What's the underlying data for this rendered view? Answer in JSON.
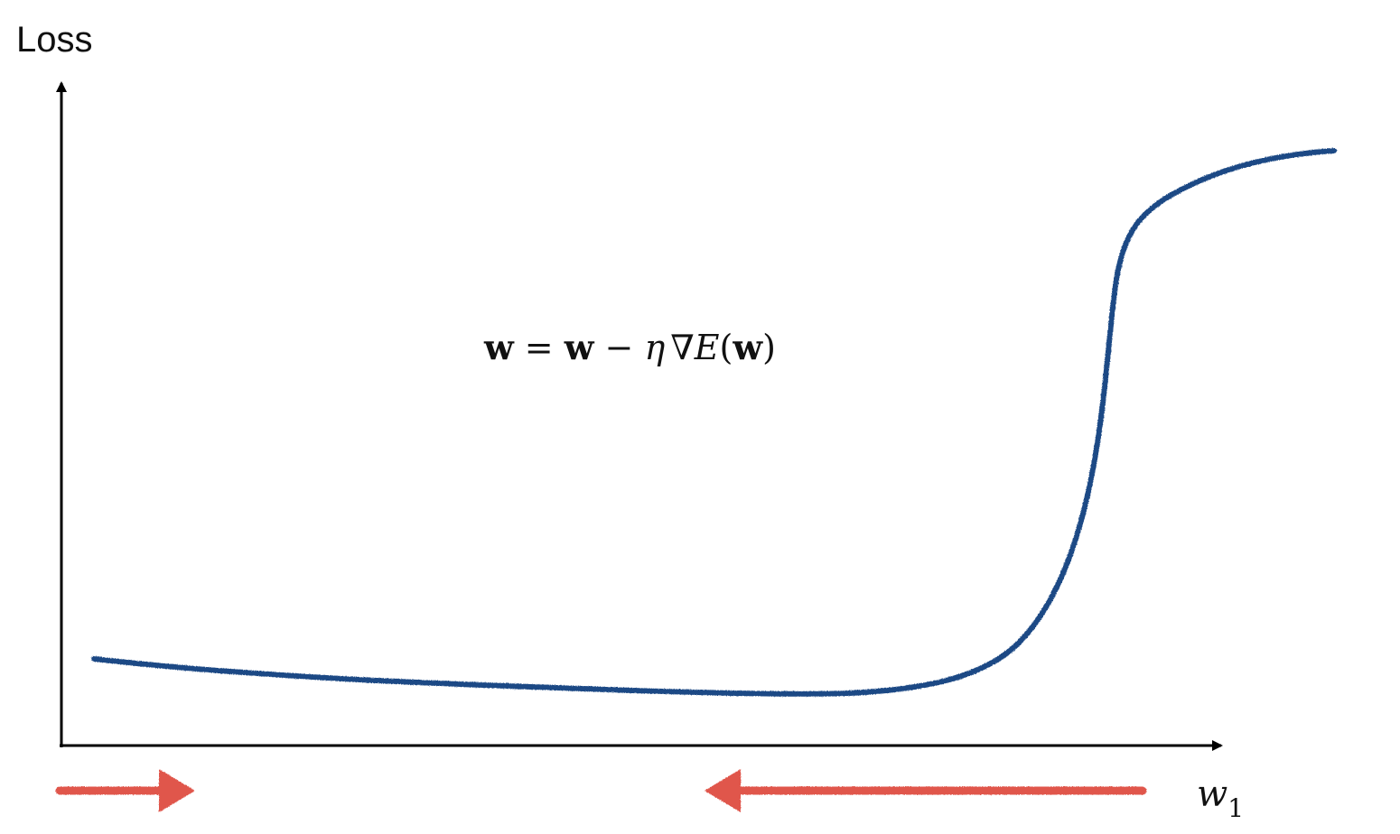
{
  "diagram": {
    "y_axis_label": "Loss",
    "x_axis_label": {
      "base": "w",
      "subscript": "1"
    },
    "formula": {
      "lhs": "w",
      "equals": " = ",
      "rhs_w": "w",
      "minus": " − ",
      "eta": "η",
      "nabla": "∇",
      "E": "E",
      "open_paren": "(",
      "arg": "w",
      "close_paren": ")"
    },
    "colors": {
      "curve": "#1f4a85",
      "arrows": "#e0564b",
      "axes": "#000000"
    },
    "arrows": [
      {
        "name": "left-arrow",
        "direction": "right"
      },
      {
        "name": "right-arrow",
        "direction": "left"
      }
    ]
  }
}
